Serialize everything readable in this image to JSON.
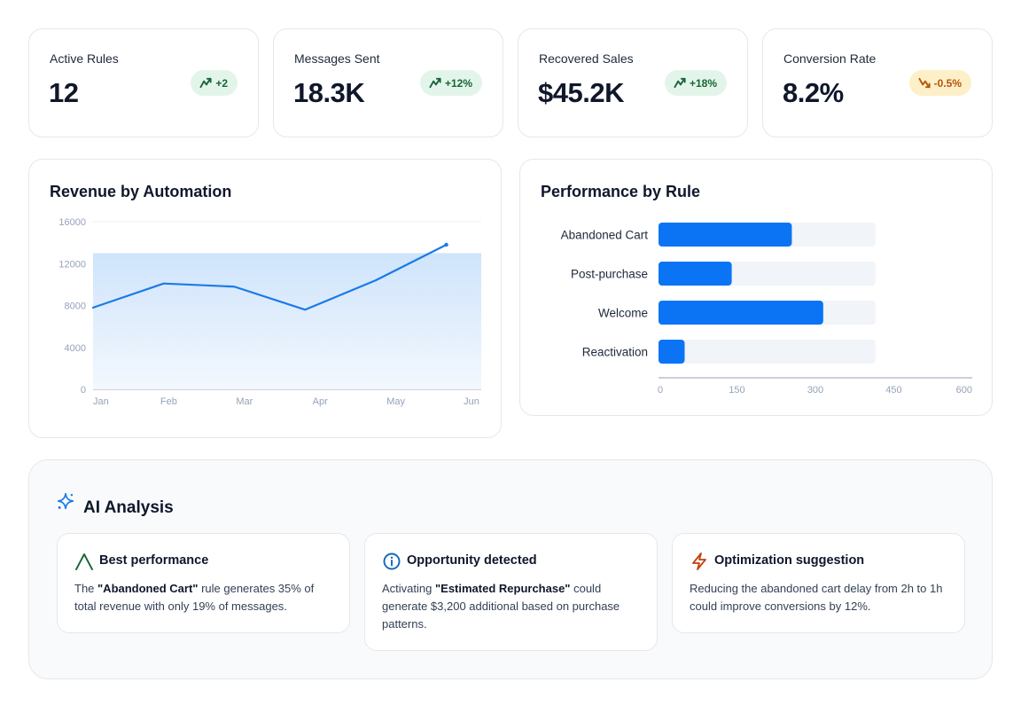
{
  "kpis": [
    {
      "label": "Active Rules",
      "value": "12",
      "delta": "+2",
      "trend": "up"
    },
    {
      "label": "Messages Sent",
      "value": "18.3K",
      "delta": "+12%",
      "trend": "up"
    },
    {
      "label": "Recovered Sales",
      "value": "$45.2K",
      "delta": "+18%",
      "trend": "up"
    },
    {
      "label": "Conversion Rate",
      "value": "8.2%",
      "delta": "-0.5%",
      "trend": "down"
    }
  ],
  "revenue": {
    "title": "Revenue by Automation"
  },
  "performance": {
    "title": "Performance by Rule"
  },
  "chart_data": [
    {
      "type": "area",
      "title": "Revenue by Automation",
      "categories": [
        "Jan",
        "Feb",
        "Mar",
        "Apr",
        "May",
        "Jun"
      ],
      "series": [
        {
          "values": [
            7800,
            10100,
            9800,
            7600,
            10400,
            13800
          ]
        }
      ],
      "yticks": [
        "0",
        "4000",
        "8000",
        "12000",
        "16000"
      ],
      "ylim": [
        0,
        16000
      ],
      "grid": true,
      "color": "#1a7ae8"
    },
    {
      "type": "bar",
      "orientation": "horizontal",
      "title": "Performance by Rule",
      "categories": [
        "Abandoned Cart",
        "Post-purchase",
        "Welcome",
        "Reactivation"
      ],
      "values": [
        255,
        140,
        315,
        50
      ],
      "track_max": 415,
      "xticks": [
        "0",
        "150",
        "300",
        "450",
        "600"
      ],
      "xlim": [
        0,
        600
      ],
      "color": "#0b74f4"
    }
  ],
  "ai": {
    "title": "AI Analysis",
    "insights": [
      {
        "icon": "trend-peak-icon",
        "title": "Best performance",
        "pre": "The ",
        "bold": "\"Abandoned Cart\"",
        "post": " rule generates 35% of total revenue with only 19% of messages."
      },
      {
        "icon": "info-icon",
        "title": "Opportunity detected",
        "pre": "Activating ",
        "bold": "\"Estimated Repurchase\"",
        "post": " could generate $3,200 additional based on purchase patterns."
      },
      {
        "icon": "lightning-icon",
        "title": "Optimization suggestion",
        "pre": "",
        "bold": "",
        "post": "Reducing the abandoned cart delay from 2h to 1h could improve conversions by 12%."
      }
    ]
  },
  "colors": {
    "accent": "#0b74f4",
    "up": "#166534",
    "down": "#b45309"
  }
}
